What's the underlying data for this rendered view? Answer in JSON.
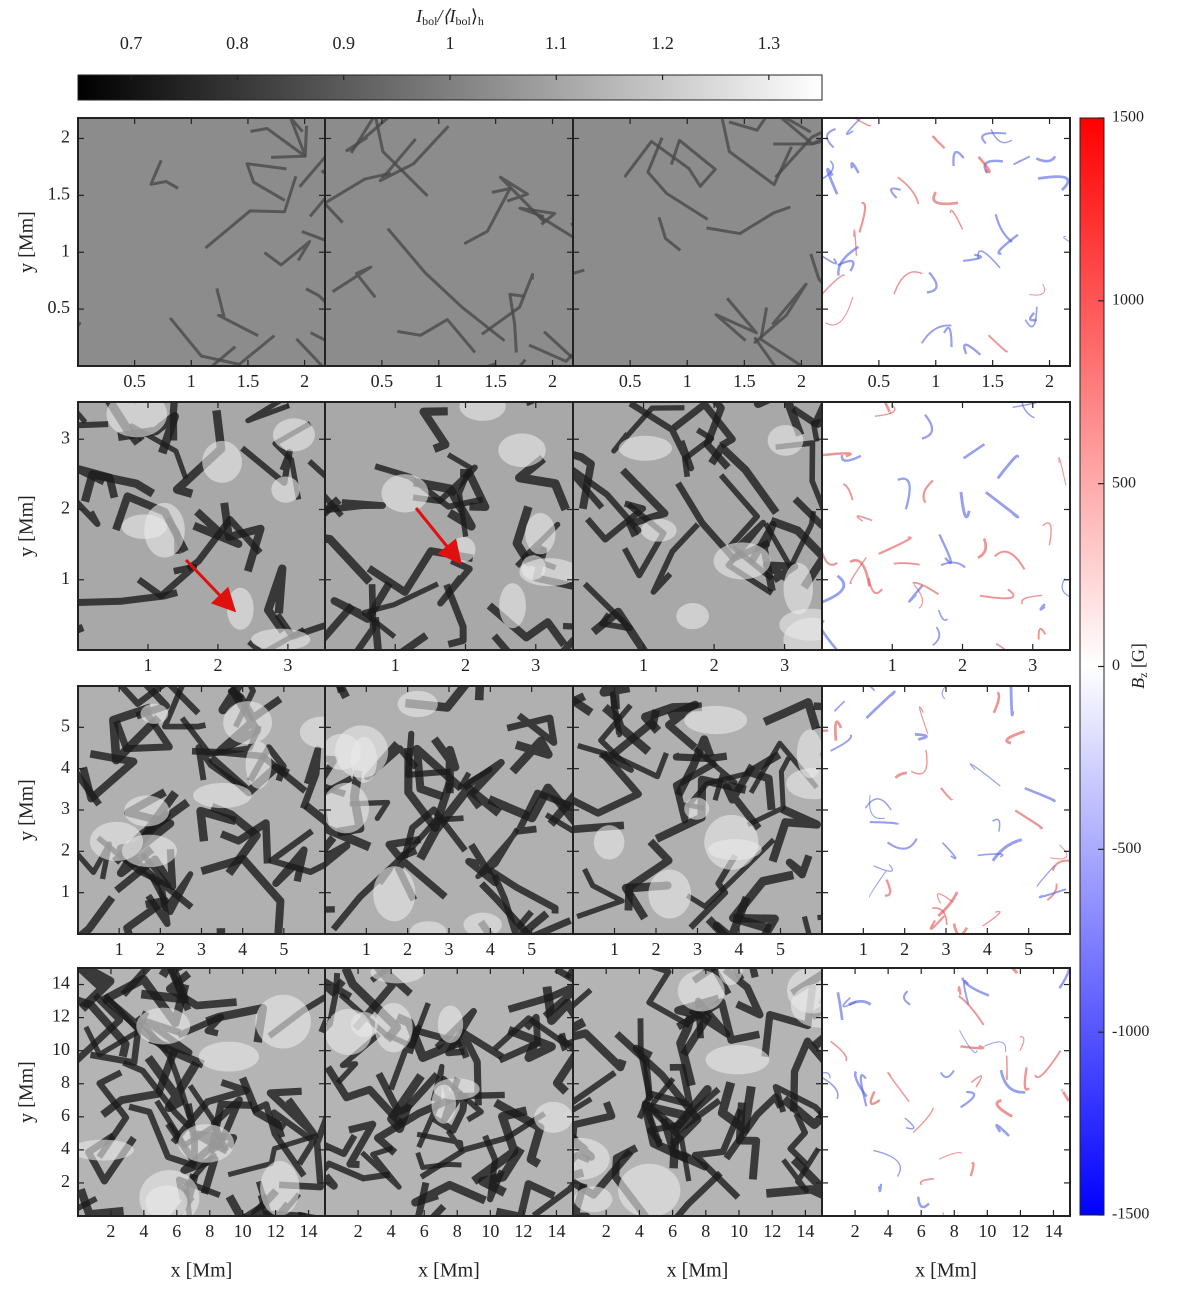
{
  "chart_data": {
    "type": "image-grid",
    "colorbar": {
      "label": [
        "I",
        "bol",
        "/⟨I",
        "bol",
        "⟩",
        "h"
      ],
      "lim": [
        0.65,
        1.35
      ],
      "ticks": [
        0.7,
        0.8,
        0.9,
        1,
        1.1,
        1.2,
        1.3
      ]
    },
    "colorbar2": {
      "label": [
        "B",
        "z",
        " [G]"
      ],
      "lim": [
        -1500,
        1500
      ],
      "ticks": [
        1500,
        1000,
        500,
        0,
        -500,
        -1000,
        -1500
      ]
    },
    "x_label": "x [Mm]",
    "y_label": "y [Mm]",
    "rows": [
      {
        "xlim": [
          0,
          2.18
        ],
        "ylim": [
          0,
          2.18
        ],
        "xticks": [
          0.5,
          1,
          1.5,
          2
        ],
        "yticks": [
          0.5,
          1,
          1.5,
          2
        ]
      },
      {
        "xlim": [
          0,
          3.53
        ],
        "ylim": [
          0,
          3.53
        ],
        "xticks": [
          1,
          2,
          3
        ],
        "yticks": [
          1,
          2,
          3
        ]
      },
      {
        "xlim": [
          0,
          6
        ],
        "ylim": [
          0,
          6
        ],
        "xticks": [
          1,
          2,
          3,
          4,
          5
        ],
        "yticks": [
          1,
          2,
          3,
          4,
          5
        ]
      },
      {
        "xlim": [
          0,
          15
        ],
        "ylim": [
          0,
          15
        ],
        "xticks": [
          2,
          4,
          6,
          8,
          10,
          12,
          14
        ],
        "yticks": [
          2,
          4,
          6,
          8,
          10,
          12,
          14
        ]
      }
    ]
  }
}
